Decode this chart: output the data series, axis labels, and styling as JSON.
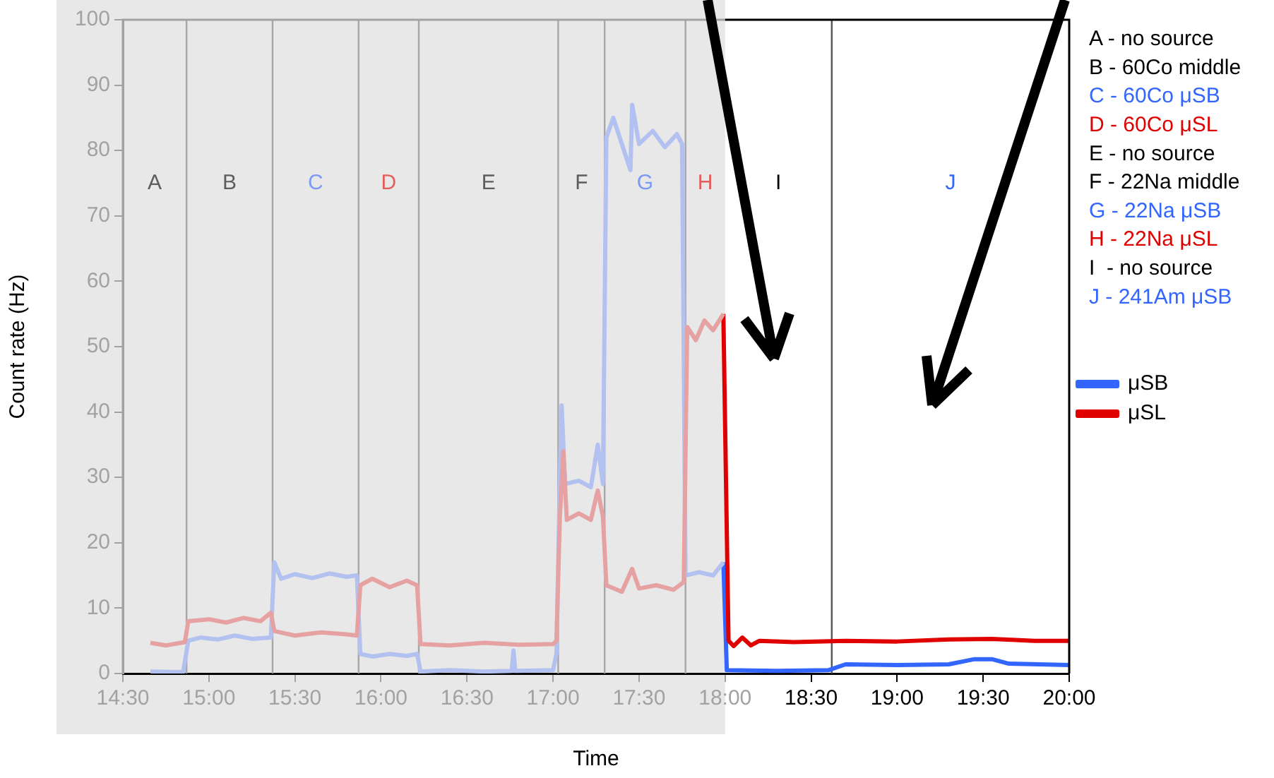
{
  "chart_data": {
    "type": "line",
    "xlabel": "Time",
    "ylabel": "Count rate (Hz)",
    "xlim": [
      14.5,
      20
    ],
    "ylim": [
      0,
      100
    ],
    "xticks": [
      {
        "value": 14.5,
        "label": "14:30"
      },
      {
        "value": 15,
        "label": "15:00"
      },
      {
        "value": 15.5,
        "label": "15:30"
      },
      {
        "value": 16,
        "label": "16:00"
      },
      {
        "value": 16.5,
        "label": "16:30"
      },
      {
        "value": 17,
        "label": "17:00"
      },
      {
        "value": 17.5,
        "label": "17:30"
      },
      {
        "value": 18,
        "label": "18:00"
      },
      {
        "value": 18.5,
        "label": "18:30"
      },
      {
        "value": 19,
        "label": "19:00"
      },
      {
        "value": 19.5,
        "label": "19:30"
      },
      {
        "value": 20,
        "label": "20:00"
      }
    ],
    "yticks": [
      0,
      10,
      20,
      30,
      40,
      50,
      60,
      70,
      80,
      90,
      100
    ],
    "grid": false,
    "legend": "right",
    "marker": "none",
    "line_style": "solid",
    "series": [
      {
        "name": "μSB",
        "color": "#3366ff",
        "x": [
          17.99,
          18.01,
          18.3,
          18.6,
          18.7,
          19.0,
          19.3,
          19.45,
          19.55,
          19.65,
          20.0
        ],
        "values": [
          17,
          0.5,
          0.4,
          0.5,
          1.4,
          1.3,
          1.4,
          2.2,
          2.2,
          1.5,
          1.3
        ]
      },
      {
        "name": "μSL",
        "color": "#e00000",
        "x": [
          17.99,
          18.02,
          18.05,
          18.1,
          18.15,
          18.2,
          18.4,
          18.7,
          19.0,
          19.3,
          19.55,
          19.8,
          20.0
        ],
        "values": [
          55,
          5,
          4.2,
          5.5,
          4.3,
          5,
          4.8,
          5,
          4.9,
          5.2,
          5.3,
          5,
          5
        ]
      },
      {
        "color": "#b2c1ef",
        "x": [
          14.66,
          14.85,
          14.88,
          14.95,
          15.05,
          15.15,
          15.25,
          15.36,
          15.38,
          15.42,
          15.5,
          15.6,
          15.7,
          15.8,
          15.86,
          15.88,
          15.95,
          16.05,
          16.15,
          16.21,
          16.23,
          16.4,
          16.6,
          16.76,
          16.77,
          16.78,
          17.0,
          17.02,
          17.04,
          17.05,
          17.07,
          17.15,
          17.22,
          17.26,
          17.29,
          17.31,
          17.35,
          17.4,
          17.45,
          17.46,
          17.5,
          17.58,
          17.65,
          17.72,
          17.75,
          17.77,
          17.85,
          17.93,
          17.99
        ],
        "values": [
          0.3,
          0.2,
          5,
          5.5,
          5.2,
          5.8,
          5.3,
          5.5,
          17,
          14.5,
          15.2,
          14.6,
          15.3,
          14.8,
          15,
          3,
          2.6,
          3,
          2.7,
          3,
          0.3,
          0.5,
          0.3,
          0.4,
          3.5,
          0.4,
          0.5,
          3,
          30,
          41,
          29,
          29.5,
          28.5,
          35,
          29,
          82,
          85,
          81,
          77,
          87,
          81,
          83,
          80.5,
          82.5,
          81,
          15,
          15.5,
          15,
          17
        ]
      },
      {
        "color": "#e6a2a2",
        "x": [
          14.66,
          14.75,
          14.86,
          14.88,
          15.0,
          15.1,
          15.2,
          15.3,
          15.36,
          15.38,
          15.5,
          15.65,
          15.8,
          15.86,
          15.88,
          15.95,
          16.05,
          16.15,
          16.21,
          16.23,
          16.4,
          16.6,
          16.8,
          17.0,
          17.02,
          17.04,
          17.06,
          17.08,
          17.15,
          17.22,
          17.26,
          17.29,
          17.31,
          17.4,
          17.46,
          17.5,
          17.6,
          17.7,
          17.76,
          17.78,
          17.83,
          17.88,
          17.93,
          17.99
        ],
        "values": [
          4.7,
          4.3,
          4.8,
          8,
          8.3,
          7.8,
          8.5,
          8,
          9.3,
          6.5,
          5.8,
          6.3,
          6,
          5.8,
          13.5,
          14.5,
          13.2,
          14.2,
          13.5,
          4.5,
          4.3,
          4.7,
          4.4,
          4.5,
          5,
          24,
          34,
          23.5,
          24.5,
          23.5,
          28,
          24,
          13.5,
          12.5,
          16,
          13,
          13.5,
          12.8,
          14,
          53,
          51,
          54,
          52.5,
          55
        ]
      }
    ],
    "ref_lines": [
      {
        "axis": "x",
        "value": 14.87,
        "color": "#a6a6a6"
      },
      {
        "axis": "x",
        "value": 15.37,
        "color": "#a6a6a6"
      },
      {
        "axis": "x",
        "value": 15.87,
        "color": "#a6a6a6"
      },
      {
        "axis": "x",
        "value": 16.22,
        "color": "#a6a6a6"
      },
      {
        "axis": "x",
        "value": 17.03,
        "color": "#a6a6a6"
      },
      {
        "axis": "x",
        "value": 17.3,
        "color": "#a6a6a6"
      },
      {
        "axis": "x",
        "value": 17.77,
        "color": "#a6a6a6"
      },
      {
        "axis": "x",
        "value": 18.62,
        "color": "#555555"
      }
    ],
    "bands": [
      {
        "axis": "x",
        "from": 14.5,
        "to": 18,
        "color": "#e8e8e8"
      }
    ],
    "annotations": [
      "A",
      "B",
      "C",
      "D",
      "E",
      "F",
      "G",
      "H",
      "I",
      "J",
      "A - no source",
      "B - 60Co middle",
      "C - 60Co μSB",
      "D - 60Co μSL",
      "E - no source",
      "F - 22Na middle",
      "G - 22Na μSB",
      "H - 22Na μSL",
      "I  - no source",
      "J - 241Am μSB"
    ]
  }
}
